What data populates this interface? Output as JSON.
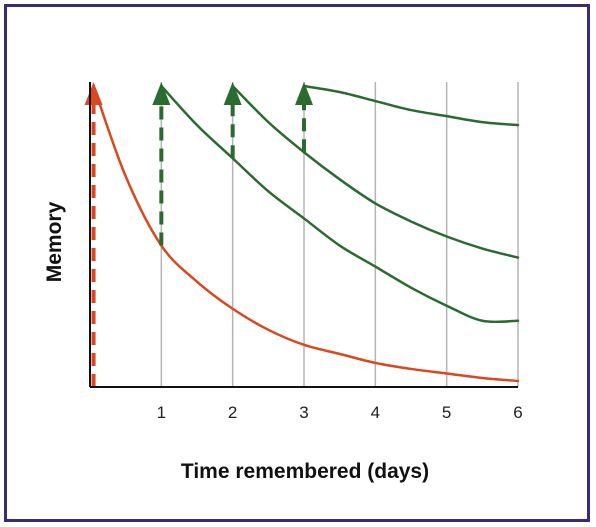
{
  "chart_data": {
    "type": "line",
    "title": "",
    "xlabel": "Time remembered (days)",
    "ylabel": "Memory",
    "xlim": [
      0,
      6
    ],
    "ylim": [
      0,
      100
    ],
    "x_ticks": [
      "1",
      "2",
      "3",
      "4",
      "5",
      "6"
    ],
    "grid": "vertical",
    "colors": {
      "first_curve": "#d9481f",
      "review_curves": "#2a6b30",
      "grid": "#b5b5b5",
      "axis": "#111111",
      "frame": "#3a2a7a"
    },
    "series": [
      {
        "kind": "forgetting-curve",
        "color": "#d9481f",
        "x": [
          0.05,
          0.5,
          1,
          1.5,
          2,
          2.5,
          3,
          3.5,
          4,
          4.5,
          5,
          5.5,
          6
        ],
        "y": [
          100,
          70,
          47,
          35,
          26,
          19,
          14,
          11,
          8,
          6,
          4.5,
          3,
          2
        ]
      },
      {
        "kind": "forgetting-curve",
        "color": "#2a6b30",
        "x": [
          1,
          1.5,
          2,
          2.5,
          3,
          3.5,
          4,
          4.5,
          5,
          5.5,
          6
        ],
        "y": [
          100,
          87,
          76,
          65,
          56,
          47,
          40,
          33,
          27,
          22,
          22
        ]
      },
      {
        "kind": "forgetting-curve",
        "color": "#2a6b30",
        "x": [
          2,
          2.5,
          3,
          3.5,
          4,
          4.5,
          5,
          5.5,
          6
        ],
        "y": [
          100,
          88,
          78,
          69,
          61,
          55,
          50,
          46,
          43
        ]
      },
      {
        "kind": "forgetting-curve",
        "color": "#2a6b30",
        "x": [
          3,
          3.5,
          4,
          4.5,
          5,
          5.5,
          6
        ],
        "y": [
          100,
          98,
          95,
          92,
          90,
          88,
          87
        ]
      }
    ],
    "review_arrows": [
      {
        "x": 0.05,
        "y_from": 0,
        "y_to": 100,
        "color": "#d9481f"
      },
      {
        "x": 1,
        "y_from": 47,
        "y_to": 100,
        "color": "#2a6b30"
      },
      {
        "x": 2,
        "y_from": 76,
        "y_to": 100,
        "color": "#2a6b30"
      },
      {
        "x": 3,
        "y_from": 78,
        "y_to": 100,
        "color": "#2a6b30"
      }
    ]
  }
}
